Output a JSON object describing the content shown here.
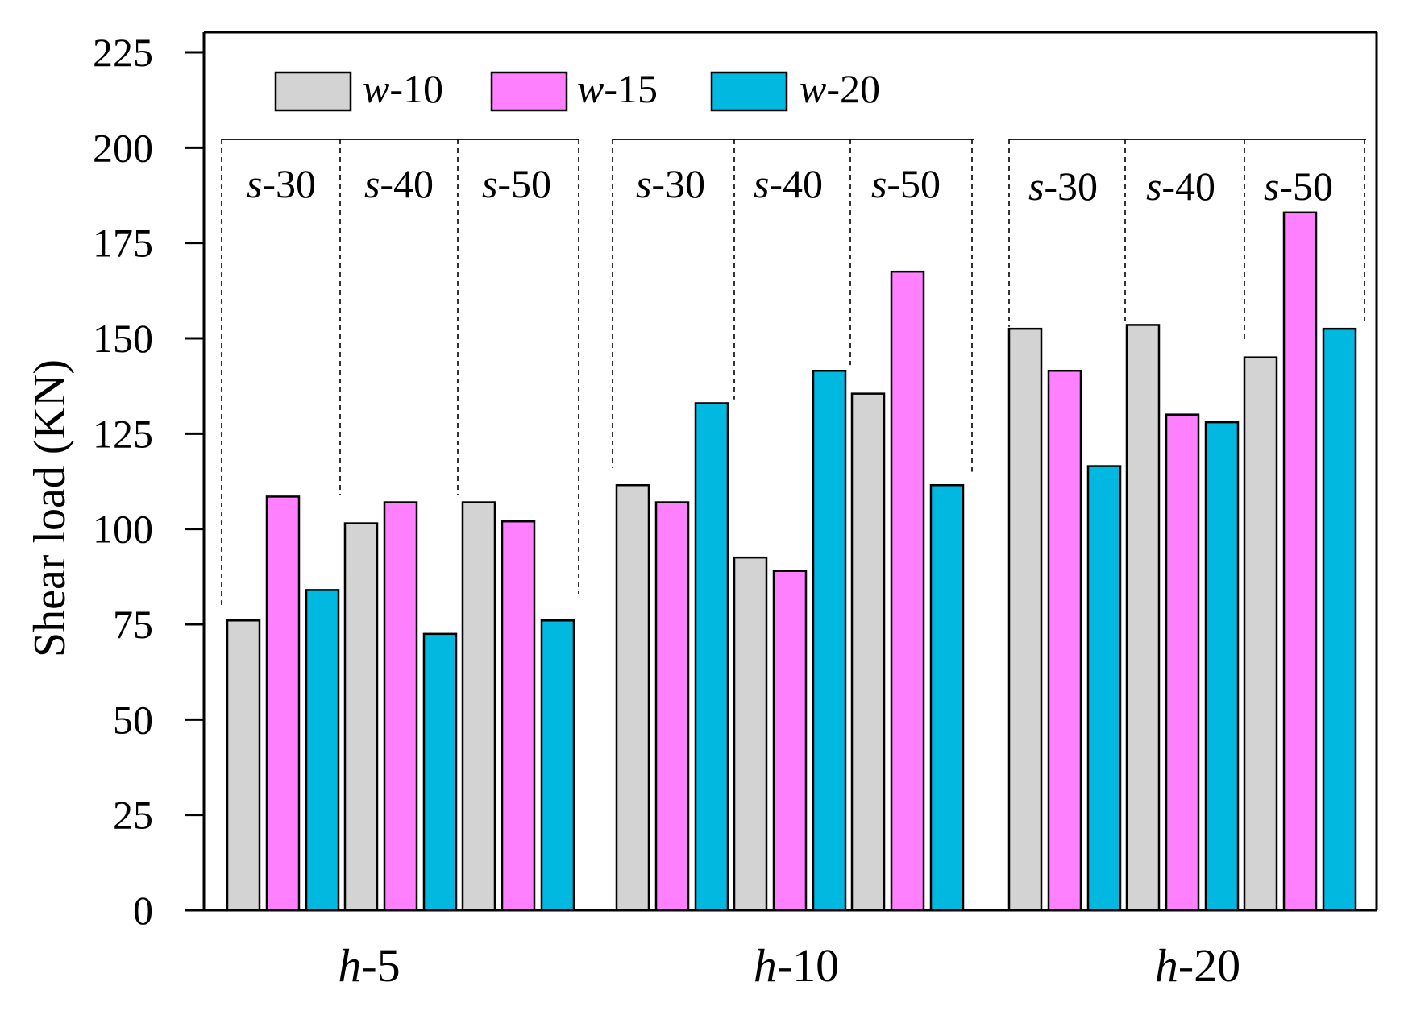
{
  "chart_data": {
    "type": "bar",
    "title": "",
    "xlabel": "",
    "ylabel": "Shear load (KN)",
    "ylim": [
      0,
      225
    ],
    "yticks": [
      0,
      25,
      50,
      75,
      100,
      125,
      150,
      175,
      200,
      225
    ],
    "grid": false,
    "legend_position": "top-left",
    "groups": [
      {
        "prefix": "h",
        "suffix": "-5",
        "subgroups": [
          {
            "prefix": "s",
            "suffix": "-30",
            "values": [
              76,
              108.5,
              84
            ]
          },
          {
            "prefix": "s",
            "suffix": "-40",
            "values": [
              101.5,
              107,
              72.5
            ]
          },
          {
            "prefix": "s",
            "suffix": "-50",
            "values": [
              107,
              102,
              76
            ]
          }
        ]
      },
      {
        "prefix": "h",
        "suffix": "-10",
        "subgroups": [
          {
            "prefix": "s",
            "suffix": "-30",
            "values": [
              111.5,
              107,
              133
            ]
          },
          {
            "prefix": "s",
            "suffix": "-40",
            "values": [
              92.5,
              89,
              141.5
            ]
          },
          {
            "prefix": "s",
            "suffix": "-50",
            "values": [
              135.5,
              167.5,
              111.5
            ]
          }
        ]
      },
      {
        "prefix": "h",
        "suffix": "-20",
        "subgroups": [
          {
            "prefix": "s",
            "suffix": "-30",
            "values": [
              152.5,
              141.5,
              116.5
            ]
          },
          {
            "prefix": "s",
            "suffix": "-40",
            "values": [
              153.5,
              130,
              128
            ]
          },
          {
            "prefix": "s",
            "suffix": "-50",
            "values": [
              145,
              183,
              152.5
            ]
          }
        ]
      }
    ],
    "series": [
      {
        "name": "w-10",
        "prefix": "w",
        "suffix": "-10",
        "color": "#d3d3d3"
      },
      {
        "name": "w-15",
        "prefix": "w",
        "suffix": "-15",
        "color": "#ff80ff"
      },
      {
        "name": "w-20",
        "prefix": "w",
        "suffix": "-20",
        "color": "#00b8e0"
      }
    ]
  }
}
